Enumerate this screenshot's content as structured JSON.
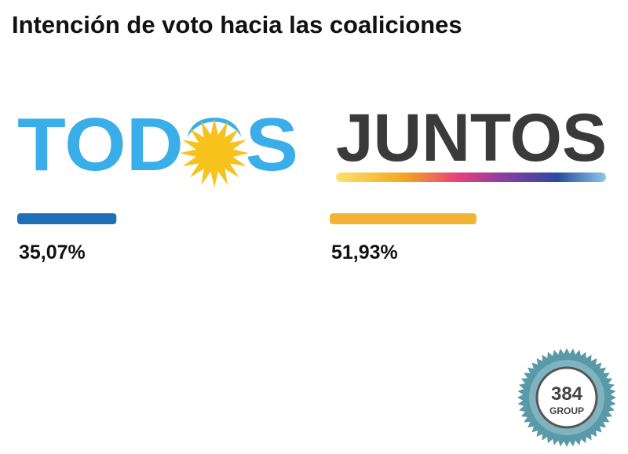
{
  "chart_data": {
    "type": "bar",
    "title": "Intención de voto hacia las coaliciones",
    "categories": [
      "TODOS",
      "JUNTOS"
    ],
    "values": [
      35.07,
      51.93
    ],
    "value_labels": [
      "35,07%",
      "51,93%"
    ],
    "colors": [
      "#1f6fb5",
      "#f5b335"
    ]
  },
  "watermark": {
    "number": "384",
    "name": "GROUP"
  }
}
